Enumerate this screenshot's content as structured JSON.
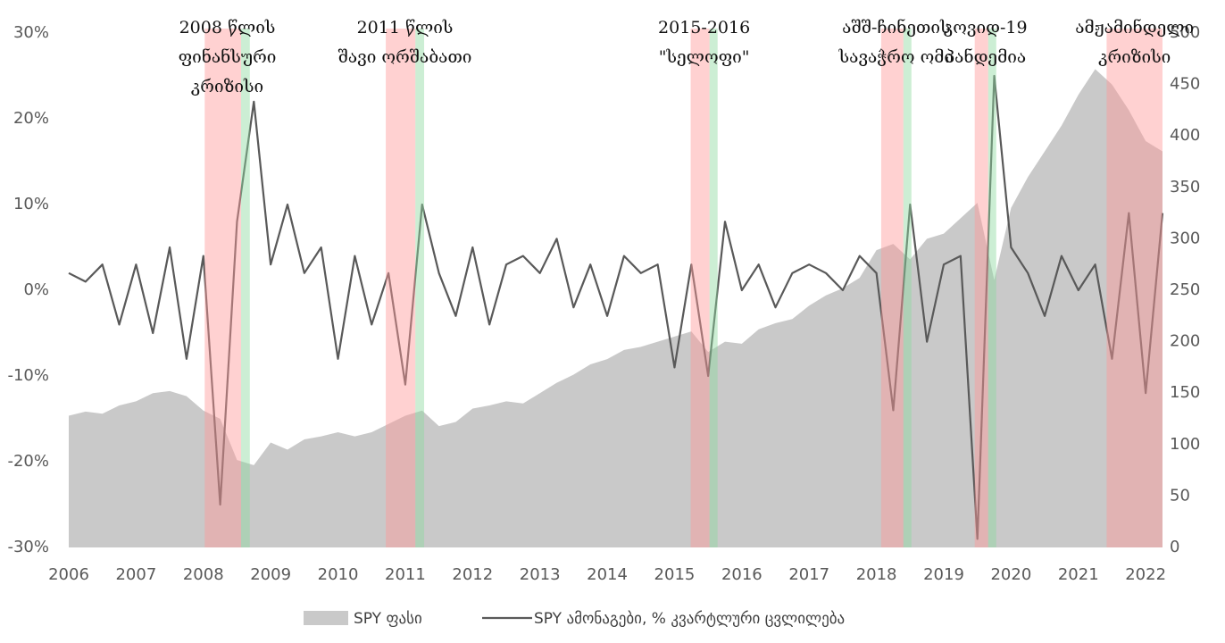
{
  "chart_data": {
    "type": "combo",
    "x": [
      2006,
      2006.25,
      2006.5,
      2006.75,
      2007,
      2007.25,
      2007.5,
      2007.75,
      2008,
      2008.25,
      2008.5,
      2008.75,
      2009,
      2009.25,
      2009.5,
      2009.75,
      2010,
      2010.25,
      2010.5,
      2010.75,
      2011,
      2011.25,
      2011.5,
      2011.75,
      2012,
      2012.25,
      2012.5,
      2012.75,
      2013,
      2013.25,
      2013.5,
      2013.75,
      2014,
      2014.25,
      2014.5,
      2014.75,
      2015,
      2015.25,
      2015.5,
      2015.75,
      2016,
      2016.25,
      2016.5,
      2016.75,
      2017,
      2017.25,
      2017.5,
      2017.75,
      2018,
      2018.25,
      2018.5,
      2018.75,
      2019,
      2019.25,
      2019.5,
      2019.75,
      2020,
      2020.25,
      2020.5,
      2020.75,
      2021,
      2021.25,
      2021.5,
      2021.75,
      2022,
      2022.25
    ],
    "series": [
      {
        "name": "SPY ფასი",
        "type": "area",
        "axis": "y2",
        "color": "#c9c9c9",
        "values": [
          128,
          132,
          130,
          138,
          142,
          150,
          152,
          147,
          133,
          125,
          85,
          80,
          102,
          95,
          105,
          108,
          112,
          108,
          112,
          120,
          128,
          133,
          118,
          122,
          135,
          138,
          142,
          140,
          150,
          160,
          168,
          178,
          183,
          192,
          195,
          200,
          205,
          210,
          190,
          200,
          198,
          212,
          218,
          222,
          235,
          245,
          252,
          262,
          289,
          295,
          280,
          300,
          305,
          320,
          335,
          260,
          330,
          360,
          385,
          410,
          440,
          465,
          450,
          425,
          395,
          385
        ]
      },
      {
        "name": "SPY ამონაგები, % კვარტლური ცვლილება",
        "type": "line",
        "color": "#595959",
        "values": [
          2,
          1,
          3,
          -4,
          3,
          -5,
          5,
          -8,
          4,
          -25,
          8,
          22,
          3,
          10,
          2,
          5,
          -8,
          4,
          -4,
          2,
          -11,
          10,
          2,
          -3,
          5,
          -4,
          3,
          4,
          2,
          6,
          -2,
          3,
          -3,
          4,
          2,
          3,
          -9,
          3,
          -10,
          8,
          0,
          3,
          -2,
          2,
          3,
          2,
          0,
          4,
          2,
          -14,
          10,
          -6,
          3,
          4,
          -29,
          25,
          5,
          2,
          -3,
          4,
          0,
          3,
          -8,
          9,
          -12,
          9
        ]
      }
    ],
    "xlim": [
      2006,
      2022.25
    ],
    "xticks": [
      2006,
      2007,
      2008,
      2009,
      2010,
      2011,
      2012,
      2013,
      2014,
      2015,
      2016,
      2017,
      2018,
      2019,
      2020,
      2021,
      2022
    ],
    "ylim": [
      -30,
      30
    ],
    "yticks": [
      {
        "value": -30,
        "label": "-30%"
      },
      {
        "value": -20,
        "label": "-20%"
      },
      {
        "value": -10,
        "label": "-10%"
      },
      {
        "value": 0,
        "label": "0%"
      },
      {
        "value": 10,
        "label": "10%"
      },
      {
        "value": 20,
        "label": "20%"
      },
      {
        "value": 30,
        "label": "30%"
      }
    ],
    "y2lim": [
      0,
      500
    ],
    "y2ticks": [
      0,
      50,
      100,
      150,
      200,
      250,
      300,
      350,
      400,
      450,
      500
    ],
    "crisis_color": "#ff9a9a",
    "recovery_color": "#8fd9a0",
    "regions": [
      {
        "label": [
          "2008 წლის",
          "ფინანსური",
          "კრიზისი"
        ],
        "crisis": [
          2008.02,
          2008.56
        ],
        "recovery": [
          2008.56,
          2008.69
        ]
      },
      {
        "label": [
          "2011 წლის",
          "შავი ორშაბათი"
        ],
        "crisis": [
          2010.71,
          2011.15
        ],
        "recovery": [
          2011.15,
          2011.28
        ]
      },
      {
        "label": [
          "2015-2016",
          "\"სელოფი\""
        ],
        "crisis": [
          2015.24,
          2015.52
        ],
        "recovery": [
          2015.52,
          2015.64
        ]
      },
      {
        "label": [
          "აშშ-ჩინეთის",
          "სავაჭრო ომი"
        ],
        "crisis": [
          2018.07,
          2018.4
        ],
        "recovery": [
          2018.4,
          2018.52
        ]
      },
      {
        "label": [
          "კოვიდ-19",
          "პანდემია"
        ],
        "crisis": [
          2019.46,
          2019.66
        ],
        "recovery": [
          2019.66,
          2019.78
        ]
      },
      {
        "label": [
          "ამჟამინდელი",
          "კრიზისი"
        ],
        "crisis": [
          2021.42,
          2022.25
        ]
      }
    ]
  }
}
